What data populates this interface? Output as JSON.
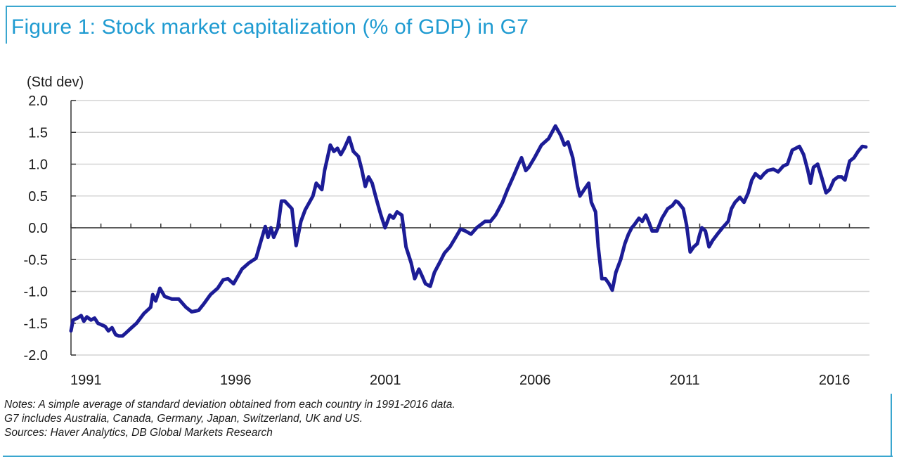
{
  "figure": {
    "title": "Figure 1: Stock market capitalization (% of GDP) in G7",
    "accent_color": "#1f9bd1",
    "line_color": "#1c1c96",
    "notes": [
      "Notes:  A simple average of standard deviation obtained from each country in 1991-2016 data.",
      "G7 includes Australia, Canada, Germany, Japan, Switzerland, UK and US.",
      "Sources:  Haver Analytics, DB Global Markets Research"
    ]
  },
  "chart_data": {
    "type": "line",
    "title": "Figure 1: Stock market capitalization (% of GDP) in G7",
    "xlabel": "",
    "ylabel": "(Std dev)",
    "ylim": [
      -2.0,
      2.0
    ],
    "xlim": [
      1991.0,
      2017.67
    ],
    "y_ticks": [
      "2.0",
      "1.5",
      "1.0",
      "0.5",
      "0.0",
      "-0.5",
      "-1.0",
      "-1.5",
      "-2.0"
    ],
    "y_tick_values": [
      2.0,
      1.5,
      1.0,
      0.5,
      0.0,
      -0.5,
      -1.0,
      -1.5,
      -2.0
    ],
    "x_tick_labels": [
      "1991",
      "1996",
      "2001",
      "2006",
      "2011",
      "2016"
    ],
    "x_tick_label_years": [
      1991,
      1996,
      2001,
      2006,
      2011,
      2016
    ],
    "grid": "horizontal",
    "legend": "none",
    "series": [
      {
        "name": "G7 stock market capitalization (std dev)",
        "x": [
          1991.0,
          1991.07,
          1991.21,
          1991.34,
          1991.43,
          1991.53,
          1991.67,
          1991.79,
          1991.9,
          1992.14,
          1992.25,
          1992.37,
          1992.49,
          1992.6,
          1992.72,
          1992.84,
          1993.0,
          1993.19,
          1993.43,
          1993.66,
          1993.73,
          1993.83,
          1993.97,
          1994.13,
          1994.37,
          1994.6,
          1994.84,
          1995.03,
          1995.26,
          1995.43,
          1995.66,
          1995.9,
          1996.08,
          1996.24,
          1996.43,
          1996.71,
          1996.95,
          1997.18,
          1997.35,
          1997.49,
          1997.58,
          1997.68,
          1997.77,
          1997.91,
          1998.03,
          1998.14,
          1998.38,
          1998.52,
          1998.68,
          1998.82,
          1999.08,
          1999.19,
          1999.38,
          1999.47,
          1999.66,
          1999.78,
          1999.9,
          2000.01,
          2000.13,
          2000.29,
          2000.43,
          2000.6,
          2000.71,
          2000.83,
          2000.94,
          2001.06,
          2001.2,
          2001.35,
          2001.49,
          2001.65,
          2001.77,
          2001.89,
          2002.05,
          2002.19,
          2002.36,
          2002.48,
          2002.62,
          2002.72,
          2002.84,
          2003.0,
          2003.14,
          2003.31,
          2003.47,
          2003.66,
          2003.85,
          2004.01,
          2004.17,
          2004.36,
          2004.55,
          2004.83,
          2005.01,
          2005.18,
          2005.41,
          2005.58,
          2005.77,
          2005.95,
          2006.05,
          2006.19,
          2006.29,
          2006.48,
          2006.71,
          2006.95,
          2007.18,
          2007.36,
          2007.48,
          2007.6,
          2007.76,
          2007.92,
          2008.0,
          2008.14,
          2008.29,
          2008.38,
          2008.52,
          2008.61,
          2008.73,
          2008.85,
          2008.97,
          2009.08,
          2009.2,
          2009.36,
          2009.5,
          2009.62,
          2009.73,
          2009.82,
          2009.97,
          2010.08,
          2010.2,
          2010.29,
          2010.41,
          2010.57,
          2010.74,
          2010.93,
          2011.09,
          2011.2,
          2011.28,
          2011.45,
          2011.56,
          2011.68,
          2011.8,
          2011.92,
          2012.0,
          2012.07,
          2012.19,
          2012.31,
          2012.43,
          2012.59,
          2012.76,
          2012.95,
          2013.06,
          2013.18,
          2013.34,
          2013.48,
          2013.62,
          2013.74,
          2013.86,
          2014.03,
          2014.15,
          2014.27,
          2014.46,
          2014.62,
          2014.79,
          2014.93,
          2015.09,
          2015.21,
          2015.33,
          2015.47,
          2015.61,
          2015.7,
          2015.8,
          2015.94,
          2016.08,
          2016.22,
          2016.34,
          2016.48,
          2016.62,
          2016.74,
          2016.85,
          2017.01,
          2017.15,
          2017.29,
          2017.43,
          2017.55
        ],
        "values": [
          -1.62,
          -1.45,
          -1.42,
          -1.38,
          -1.47,
          -1.4,
          -1.45,
          -1.42,
          -1.5,
          -1.55,
          -1.62,
          -1.57,
          -1.68,
          -1.7,
          -1.7,
          -1.65,
          -1.58,
          -1.5,
          -1.35,
          -1.25,
          -1.05,
          -1.15,
          -0.95,
          -1.08,
          -1.12,
          -1.12,
          -1.25,
          -1.32,
          -1.3,
          -1.2,
          -1.05,
          -0.95,
          -0.82,
          -0.8,
          -0.88,
          -0.65,
          -0.55,
          -0.48,
          -0.2,
          0.02,
          -0.15,
          0.0,
          -0.15,
          0.0,
          0.42,
          0.42,
          0.3,
          -0.28,
          0.1,
          0.28,
          0.5,
          0.7,
          0.6,
          0.9,
          1.3,
          1.2,
          1.25,
          1.15,
          1.25,
          1.42,
          1.2,
          1.12,
          0.92,
          0.65,
          0.8,
          0.7,
          0.45,
          0.2,
          0.0,
          0.2,
          0.15,
          0.25,
          0.2,
          -0.3,
          -0.55,
          -0.8,
          -0.65,
          -0.75,
          -0.88,
          -0.92,
          -0.7,
          -0.55,
          -0.4,
          -0.3,
          -0.15,
          -0.02,
          -0.05,
          -0.1,
          0.0,
          0.1,
          0.1,
          0.2,
          0.4,
          0.6,
          0.8,
          1.0,
          1.1,
          0.9,
          0.95,
          1.1,
          1.3,
          1.4,
          1.6,
          1.45,
          1.3,
          1.35,
          1.1,
          0.65,
          0.5,
          0.6,
          0.7,
          0.4,
          0.25,
          -0.3,
          -0.8,
          -0.8,
          -0.88,
          -0.98,
          -0.7,
          -0.5,
          -0.25,
          -0.1,
          0.0,
          0.05,
          0.15,
          0.1,
          0.2,
          0.1,
          -0.05,
          -0.05,
          0.15,
          0.3,
          0.35,
          0.42,
          0.4,
          0.3,
          0.05,
          -0.38,
          -0.3,
          -0.25,
          -0.1,
          0.0,
          -0.05,
          -0.3,
          -0.2,
          -0.1,
          0.0,
          0.1,
          0.3,
          0.4,
          0.48,
          0.4,
          0.55,
          0.75,
          0.85,
          0.78,
          0.85,
          0.9,
          0.92,
          0.88,
          0.97,
          1.0,
          1.22,
          1.25,
          1.28,
          1.15,
          0.9,
          0.7,
          0.95,
          1.0,
          0.78,
          0.55,
          0.6,
          0.75,
          0.8,
          0.8,
          0.75,
          1.05,
          1.1,
          1.2,
          1.28,
          1.27
        ]
      }
    ]
  }
}
